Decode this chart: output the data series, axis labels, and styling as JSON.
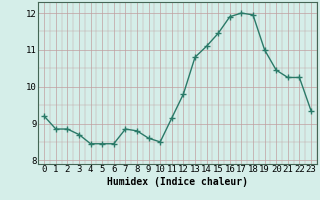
{
  "x": [
    0,
    1,
    2,
    3,
    4,
    5,
    6,
    7,
    8,
    9,
    10,
    11,
    12,
    13,
    14,
    15,
    16,
    17,
    18,
    19,
    20,
    21,
    22,
    23
  ],
  "y": [
    9.2,
    8.85,
    8.85,
    8.7,
    8.45,
    8.45,
    8.45,
    8.85,
    8.8,
    8.6,
    8.5,
    9.15,
    9.8,
    10.8,
    11.1,
    11.45,
    11.9,
    12.0,
    11.95,
    11.0,
    10.45,
    10.25,
    10.25,
    9.35
  ],
  "line_color": "#2a7a68",
  "marker": "+",
  "marker_size": 4,
  "line_width": 1.0,
  "xlabel": "Humidex (Indice chaleur)",
  "xlabel_fontsize": 7,
  "xlim": [
    -0.5,
    23.5
  ],
  "ylim": [
    7.9,
    12.3
  ],
  "yticks": [
    8,
    9,
    10,
    11,
    12
  ],
  "xticks": [
    0,
    1,
    2,
    3,
    4,
    5,
    6,
    7,
    8,
    9,
    10,
    11,
    12,
    13,
    14,
    15,
    16,
    17,
    18,
    19,
    20,
    21,
    22,
    23
  ],
  "bg_color": "#d5eee9",
  "grid_color": "#c0a0a0",
  "tick_fontsize": 6.5,
  "font_family": "monospace"
}
